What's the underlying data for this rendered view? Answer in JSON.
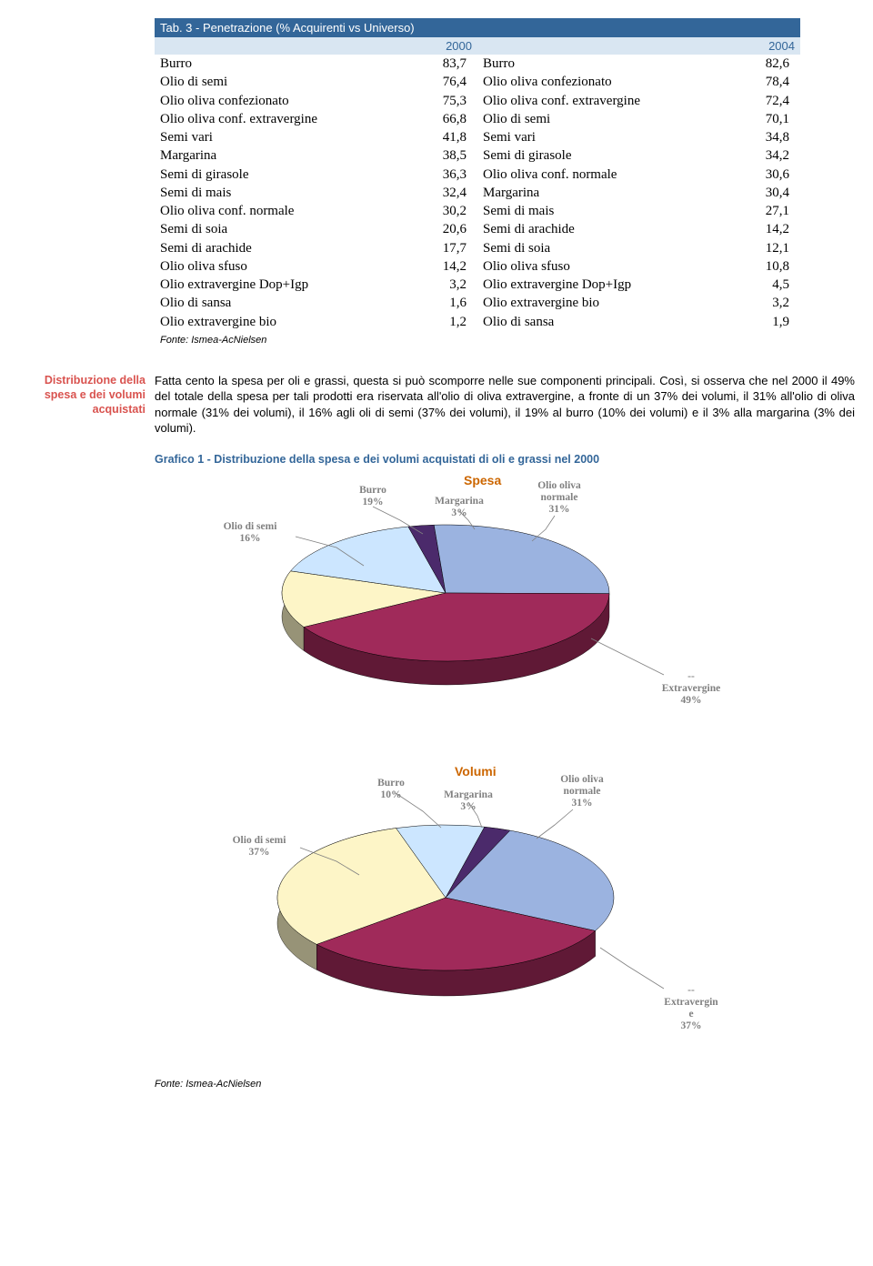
{
  "table": {
    "title": "Tab. 3 - Penetrazione (% Acquirenti vs Universo)",
    "year_left": "2000",
    "year_right": "2004",
    "rows": [
      {
        "l_label": "Burro",
        "l_val": "83,7",
        "r_label": "Burro",
        "r_val": "82,6"
      },
      {
        "l_label": "Olio di semi",
        "l_val": "76,4",
        "r_label": "Olio oliva confezionato",
        "r_val": "78,4"
      },
      {
        "l_label": "Olio oliva confezionato",
        "l_val": "75,3",
        "r_label": "Olio oliva conf. extravergine",
        "r_val": "72,4"
      },
      {
        "l_label": "Olio oliva conf. extravergine",
        "l_val": "66,8",
        "r_label": "Olio di semi",
        "r_val": "70,1"
      },
      {
        "l_label": "Semi vari",
        "l_val": "41,8",
        "r_label": "Semi vari",
        "r_val": "34,8"
      },
      {
        "l_label": "Margarina",
        "l_val": "38,5",
        "r_label": "Semi di girasole",
        "r_val": "34,2"
      },
      {
        "l_label": "Semi di girasole",
        "l_val": "36,3",
        "r_label": "Olio oliva conf. normale",
        "r_val": "30,6"
      },
      {
        "l_label": "Semi di mais",
        "l_val": "32,4",
        "r_label": "Margarina",
        "r_val": "30,4"
      },
      {
        "l_label": "Olio oliva conf. normale",
        "l_val": "30,2",
        "r_label": "Semi di mais",
        "r_val": "27,1"
      },
      {
        "l_label": "Semi di soia",
        "l_val": "20,6",
        "r_label": "Semi di arachide",
        "r_val": "14,2"
      },
      {
        "l_label": "Semi di arachide",
        "l_val": "17,7",
        "r_label": "Semi di soia",
        "r_val": "12,1"
      },
      {
        "l_label": "Olio oliva sfuso",
        "l_val": "14,2",
        "r_label": "Olio oliva sfuso",
        "r_val": "10,8"
      },
      {
        "l_label": "Olio extravergine Dop+Igp",
        "l_val": "3,2",
        "r_label": "Olio extravergine Dop+Igp",
        "r_val": "4,5"
      },
      {
        "l_label": "Olio di sansa",
        "l_val": "1,6",
        "r_label": "Olio extravergine bio",
        "r_val": "3,2"
      },
      {
        "l_label": "Olio extravergine bio",
        "l_val": "1,2",
        "r_label": "Olio di sansa",
        "r_val": "1,9"
      }
    ],
    "source": "Fonte: Ismea-AcNielsen"
  },
  "section": {
    "sidebar": "Distribuzione della spesa e dei volumi acquistati",
    "body": "Fatta cento la spesa per oli e grassi, questa si può scomporre nelle sue componenti principali. Così, si osserva che nel 2000 il 49% del totale della spesa per tali prodotti era riservata all'olio di oliva extravergine, a fronte di un 37% dei volumi, il 31% all'olio di oliva normale (31% dei volumi), il 16% agli oli di semi (37% dei volumi), il 19% al burro (10% dei volumi) e il 3% alla margarina (3% dei volumi)."
  },
  "chart1": {
    "title": "Grafico 1 - Distribuzione della spesa e dei volumi acquistati di oli e grassi nel 2000",
    "center_title": "Spesa",
    "center_color": "#cc6600",
    "slices": [
      {
        "label": "Olio di semi",
        "value": 16,
        "color": "#fdf5c7",
        "text": "Olio di semi\n16%"
      },
      {
        "label": "Burro",
        "value": 19,
        "color": "#cce6ff",
        "text": "Burro\n19%"
      },
      {
        "label": "Margarina",
        "value": 3,
        "color": "#4b2a6b",
        "text": "Margarina\n3%"
      },
      {
        "label": "Olio oliva normale",
        "value": 31,
        "color": "#9bb3e0",
        "text": "Olio oliva\nnormale\n31%"
      },
      {
        "label": "Extravergine",
        "value": 49,
        "color": "#a02a5a",
        "text": "--\nExtravergine\n49%"
      }
    ]
  },
  "chart2": {
    "center_title": "Volumi",
    "center_color": "#cc6600",
    "slices": [
      {
        "label": "Olio di semi",
        "value": 37,
        "color": "#fdf5c7",
        "text": "Olio di semi\n37%"
      },
      {
        "label": "Burro",
        "value": 10,
        "color": "#cce6ff",
        "text": "Burro\n10%"
      },
      {
        "label": "Margarina",
        "value": 3,
        "color": "#4b2a6b",
        "text": "Margarina\n3%"
      },
      {
        "label": "Olio oliva normale",
        "value": 31,
        "color": "#9bb3e0",
        "text": "Olio oliva\nnormale\n31%"
      },
      {
        "label": "Extravergine",
        "value": 37,
        "color": "#a02a5a",
        "text": "--\nExtravergin\ne\n37%"
      }
    ]
  },
  "footer_source": "Fonte: Ismea-AcNielsen"
}
